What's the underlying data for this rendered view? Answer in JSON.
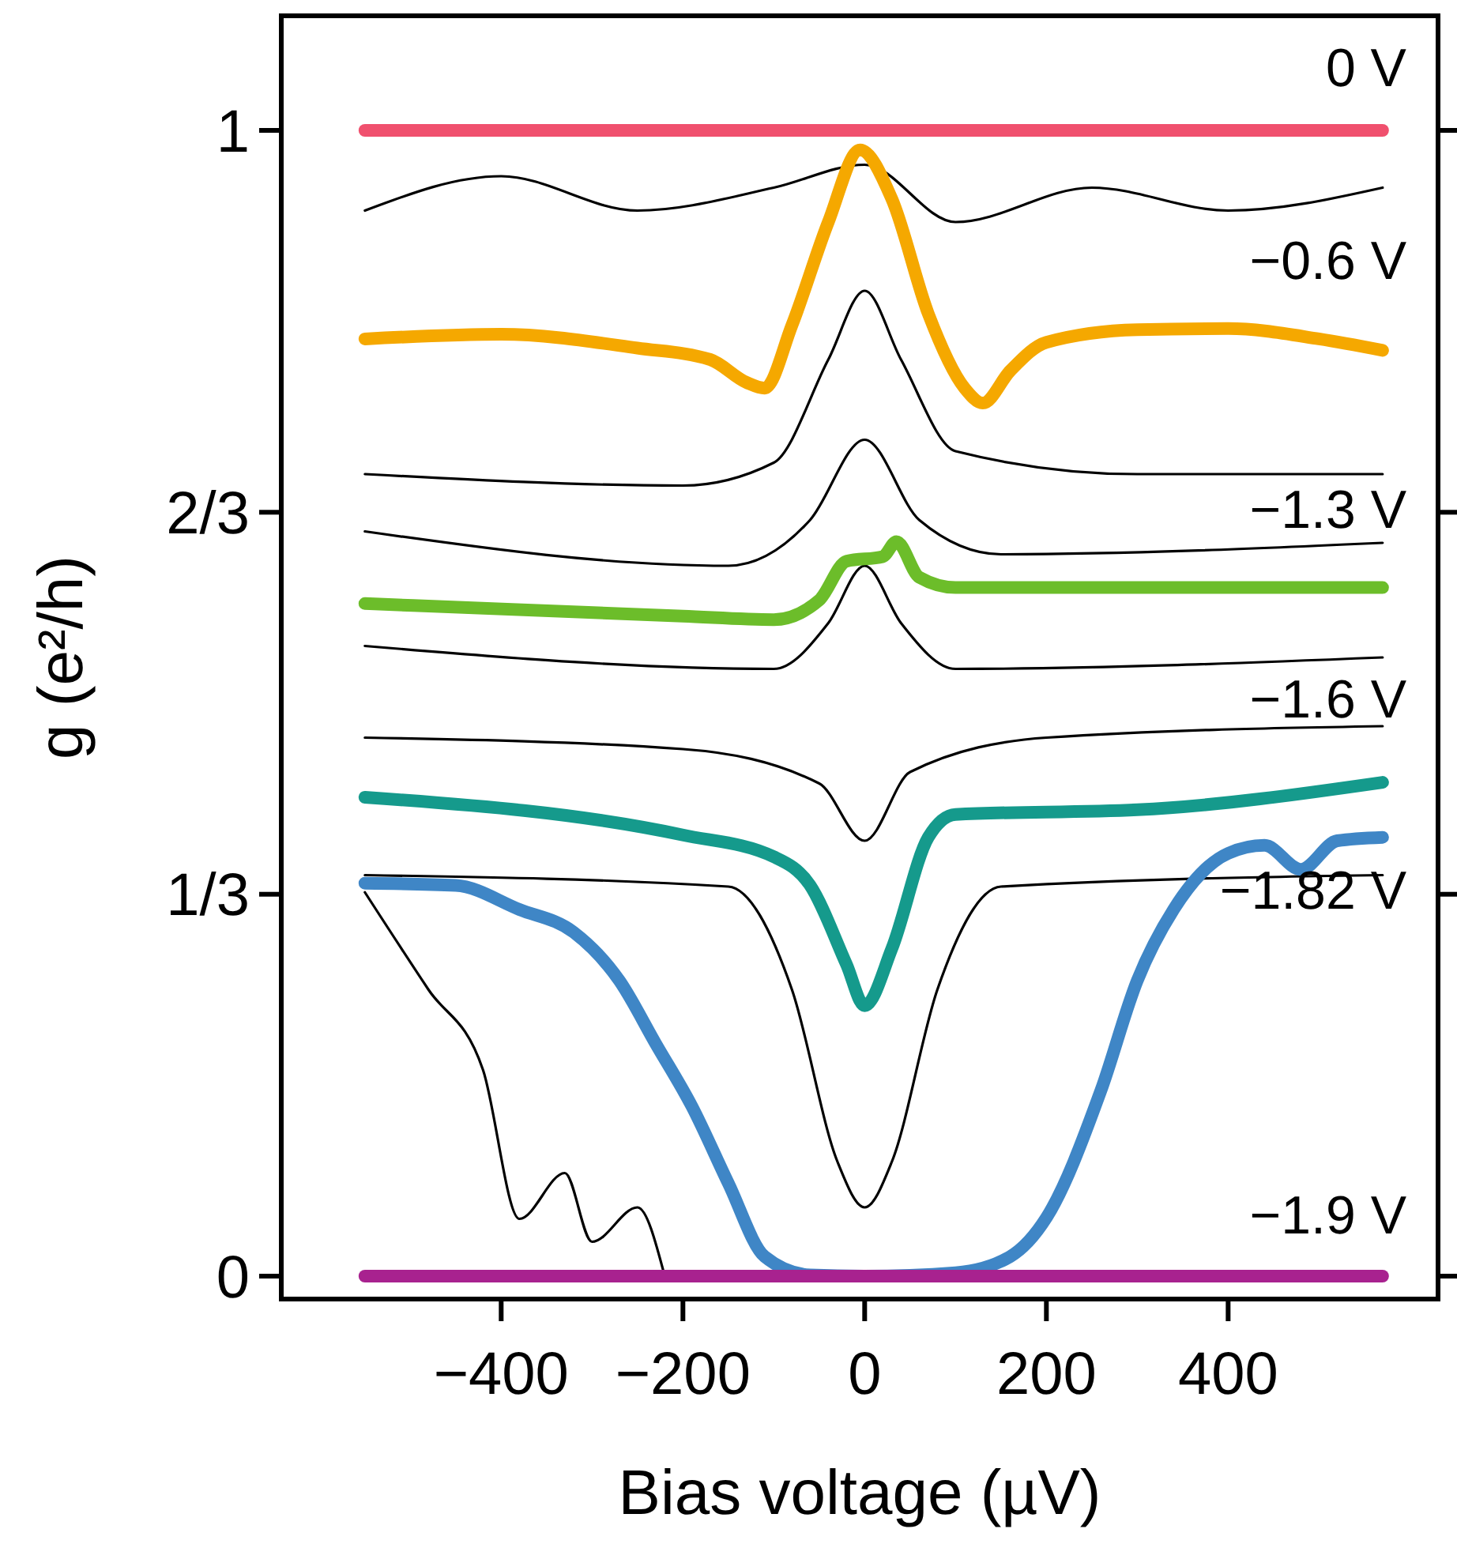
{
  "chart_data": {
    "type": "line",
    "xlabel": "Bias voltage (µV)",
    "ylabel": "g (e²/h)",
    "xlim": [
      -642,
      631
    ],
    "ylim": [
      -0.02,
      1.1
    ],
    "xticks": [
      -400,
      -200,
      0,
      200,
      400
    ],
    "yticks": [
      0,
      {
        "value": 0.3333,
        "label": "1/3"
      },
      {
        "value": 0.6667,
        "label": "2/3"
      },
      1
    ],
    "grid": false,
    "line_style": "solid",
    "marker": "none",
    "series": [
      {
        "color": "#000000",
        "x": [
          -550,
          -400,
          -250,
          -100,
          0,
          100,
          250,
          400,
          570
        ],
        "values": [
          0.93,
          0.96,
          0.93,
          0.95,
          0.97,
          0.92,
          0.95,
          0.93,
          0.95
        ]
      },
      {
        "color": "#000000",
        "x": [
          -550,
          -200,
          -100,
          -40,
          0,
          40,
          100,
          300,
          570
        ],
        "values": [
          0.7,
          0.69,
          0.71,
          0.8,
          0.86,
          0.8,
          0.72,
          0.7,
          0.7
        ]
      },
      {
        "color": "#000000",
        "x": [
          -550,
          -150,
          -60,
          0,
          60,
          150,
          570
        ],
        "values": [
          0.65,
          0.62,
          0.66,
          0.73,
          0.66,
          0.63,
          0.64
        ]
      },
      {
        "color": "#000000",
        "x": [
          -550,
          -100,
          -40,
          0,
          40,
          100,
          570
        ],
        "values": [
          0.55,
          0.53,
          0.57,
          0.62,
          0.57,
          0.53,
          0.54
        ]
      },
      {
        "color": "#000000",
        "x": [
          -550,
          -200,
          -50,
          0,
          50,
          200,
          570
        ],
        "values": [
          0.47,
          0.46,
          0.43,
          0.38,
          0.44,
          0.47,
          0.48
        ]
      },
      {
        "color": "#000000",
        "x": [
          -550,
          -150,
          -80,
          -30,
          0,
          30,
          80,
          150,
          570
        ],
        "values": [
          0.35,
          0.34,
          0.25,
          0.1,
          0.06,
          0.1,
          0.25,
          0.34,
          0.35
        ]
      },
      {
        "color": "#000000",
        "x": [
          -550,
          -480,
          -420,
          -380,
          -330,
          -300,
          -250,
          -220
        ],
        "values": [
          0.335,
          0.25,
          0.18,
          0.05,
          0.09,
          0.03,
          0.06,
          0.0
        ]
      },
      {
        "name": "0 V",
        "color": "#f0506e",
        "x": [
          -550,
          -300,
          0,
          300,
          570
        ],
        "values": [
          1,
          1,
          1,
          1,
          1
        ]
      },
      {
        "name": "−0.6 V",
        "color": "#f5a800",
        "x": [
          -550,
          -400,
          -250,
          -170,
          -130,
          -110,
          -80,
          -40,
          -5,
          30,
          70,
          110,
          130,
          160,
          200,
          300,
          400,
          500,
          570
        ],
        "values": [
          0.818,
          0.822,
          0.81,
          0.8,
          0.78,
          0.775,
          0.83,
          0.92,
          0.983,
          0.94,
          0.84,
          0.775,
          0.762,
          0.79,
          0.815,
          0.826,
          0.827,
          0.818,
          0.808
        ]
      },
      {
        "name": "−1.3 V",
        "color": "#6cbd2a",
        "x": [
          -550,
          -200,
          -100,
          -50,
          -20,
          20,
          35,
          60,
          100,
          300,
          570
        ],
        "values": [
          0.587,
          0.576,
          0.573,
          0.59,
          0.624,
          0.628,
          0.641,
          0.61,
          0.601,
          0.601,
          0.601
        ]
      },
      {
        "name": "−1.6 V",
        "color": "#159a8c",
        "x": [
          -550,
          -200,
          -100,
          -60,
          -20,
          0,
          30,
          70,
          100,
          300,
          570
        ],
        "values": [
          0.418,
          0.385,
          0.366,
          0.341,
          0.272,
          0.236,
          0.286,
          0.383,
          0.403,
          0.407,
          0.431
        ]
      },
      {
        "name": "−1.82 V",
        "color": "#3f86c6",
        "x": [
          -550,
          -450,
          -380,
          -320,
          -270,
          -230,
          -190,
          -150,
          -110,
          -60,
          0,
          100,
          160,
          200,
          260,
          300,
          340,
          400,
          440,
          480,
          520,
          570
        ],
        "values": [
          0.343,
          0.341,
          0.32,
          0.3,
          0.258,
          0.203,
          0.148,
          0.081,
          0.017,
          0.001,
          0,
          0.003,
          0.017,
          0.051,
          0.162,
          0.258,
          0.32,
          0.369,
          0.376,
          0.355,
          0.38,
          0.383
        ]
      },
      {
        "name": "−1.9 V",
        "color": "#a8228f",
        "x": [
          -550,
          -300,
          0,
          300,
          570
        ],
        "values": [
          0,
          0,
          0,
          0,
          0
        ]
      }
    ]
  }
}
